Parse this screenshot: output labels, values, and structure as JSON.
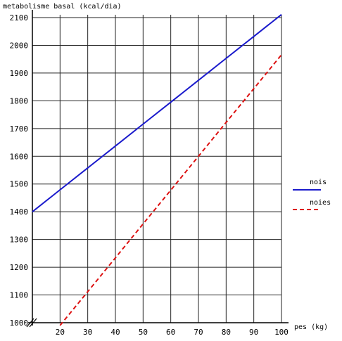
{
  "chart_data": {
    "type": "line",
    "ylabel": "metabolisme basal (kcal/dia)",
    "xlabel": "pes (kg)",
    "xlim": [
      10,
      100
    ],
    "ylim": [
      1000,
      2100
    ],
    "x_ticks": [
      20,
      30,
      40,
      50,
      60,
      70,
      80,
      90,
      100
    ],
    "y_ticks": [
      1000,
      1100,
      1200,
      1300,
      1400,
      1500,
      1600,
      1700,
      1800,
      1900,
      2000,
      2100
    ],
    "grid": true,
    "axis_break": true,
    "legend_position": "right",
    "series": [
      {
        "name": "nois",
        "style": "solid",
        "color": "#1a1acc",
        "x": [
          10,
          20,
          30,
          40,
          50,
          60,
          70,
          80,
          90,
          100
        ],
        "y": [
          1400,
          1479,
          1558,
          1637,
          1716,
          1795,
          1874,
          1953,
          2032,
          2111
        ]
      },
      {
        "name": "noies",
        "style": "dashed",
        "color": "#dd1111",
        "x": [
          20,
          30,
          40,
          50,
          60,
          70,
          80,
          90,
          100
        ],
        "y": [
          990,
          1112,
          1234,
          1356,
          1478,
          1600,
          1722,
          1844,
          1966
        ]
      }
    ]
  }
}
